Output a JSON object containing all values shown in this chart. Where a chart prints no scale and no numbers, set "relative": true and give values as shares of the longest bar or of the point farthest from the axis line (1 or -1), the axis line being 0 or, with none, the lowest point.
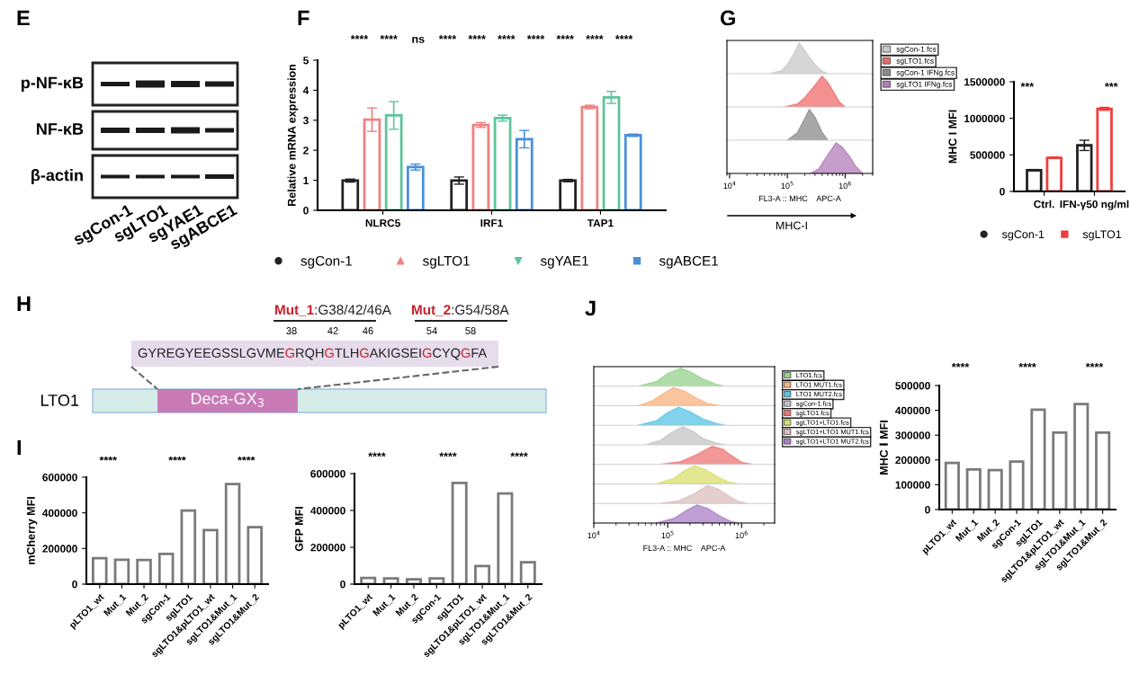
{
  "chart_data": [
    {
      "type": "other",
      "title": "E",
      "annotations": [
        "p-NF-κB",
        "NF-κB",
        "β-actin",
        "sgCon-1",
        "sgLTO1",
        "sgYAE1",
        "sgABCE1"
      ]
    },
    {
      "type": "bar",
      "title": "F",
      "ylabel": "Relative mRNA expression",
      "categories": [
        "NLRC5",
        "IRF1",
        "TAP1"
      ],
      "series": [
        {
          "name": "sgCon-1",
          "color": "#222222",
          "marker": "circle",
          "values": [
            0.99,
            0.99,
            0.99
          ],
          "errors": [
            0.05,
            0.12,
            0.04
          ]
        },
        {
          "name": "sgLTO1",
          "color": "#f08080",
          "marker": "triangle",
          "values": [
            3.02,
            2.84,
            3.44
          ],
          "errors": [
            0.39,
            0.08,
            0.06
          ]
        },
        {
          "name": "sgYAE1",
          "color": "#5cc49a",
          "marker": "triangle-down",
          "values": [
            3.16,
            3.07,
            3.76
          ],
          "errors": [
            0.46,
            0.1,
            0.2
          ]
        },
        {
          "name": "sgABCE1",
          "color": "#4a90d9",
          "marker": "square",
          "values": [
            1.44,
            2.37,
            2.5
          ],
          "errors": [
            0.1,
            0.29,
            0.04
          ]
        }
      ],
      "ylim": [
        0,
        5
      ],
      "yticks": [
        0,
        1,
        2,
        3,
        4,
        5
      ],
      "legend": "bottom",
      "annotations": [
        "****",
        "****",
        "ns",
        "****",
        "****",
        "****",
        "****",
        "****",
        "****",
        "****"
      ]
    },
    {
      "type": "area",
      "title": "G",
      "relative": true,
      "log": "x",
      "tick_labels": false,
      "legend": "right",
      "xlim": [
        9000,
        3000000
      ],
      "series": [
        {
          "name": "sgCon-1.fcs",
          "color": "#c8c8c8",
          "x": [
            50000,
            80000,
            100000,
            130000,
            160000,
            200000,
            250000,
            300000,
            400000,
            500000
          ],
          "values": [
            0,
            0.1,
            0.3,
            0.65,
            1.0,
            0.75,
            0.5,
            0.3,
            0.08,
            0
          ]
        }
      ]
    },
    {
      "type": "area",
      "relative": true,
      "log": "x",
      "tick_labels": false,
      "legend": "right",
      "xlim": [
        9000,
        3000000
      ],
      "series": [
        {
          "name": "sgLTO1.fcs",
          "color": "#ef6b6b",
          "x": [
            90000,
            150000,
            200000,
            300000,
            400000,
            500000,
            600000,
            800000,
            1000000
          ],
          "values": [
            0,
            0.1,
            0.3,
            0.7,
            1,
            0.8,
            0.55,
            0.15,
            0
          ]
        }
      ]
    },
    {
      "type": "area",
      "relative": true,
      "log": "x",
      "tick_labels": false,
      "legend": "right",
      "xlim": [
        9000,
        3000000
      ],
      "series": [
        {
          "name": "sgCon-1 IFNg.fcs",
          "color": "#8a8a8a",
          "x": [
            100000,
            150000,
            200000,
            240000,
            300000,
            400000,
            500000
          ],
          "values": [
            0,
            0.25,
            0.7,
            1,
            0.75,
            0.25,
            0
          ]
        }
      ]
    },
    {
      "type": "area",
      "relative": true,
      "log": "x",
      "tick_labels": "x",
      "legend": "right",
      "xlim": [
        9000,
        3000000
      ],
      "xlabel": "FL3-A :: MHC    APC-A",
      "xticks": [
        {
          "value": 10000,
          "label": "10$^{4}$"
        },
        {
          "value": 100000,
          "label": "10$^{5}$"
        },
        {
          "value": 1000000,
          "label": "10$^{6}$"
        }
      ],
      "series": [
        {
          "name": "sgLTO1 IFNg.fcs",
          "color": "#b27cb8",
          "x": [
            250000,
            350000,
            500000,
            700000,
            900000,
            1200000,
            1500000,
            2000000
          ],
          "values": [
            0,
            0.15,
            0.6,
            1,
            0.85,
            0.55,
            0.25,
            0
          ]
        }
      ],
      "annotations": [
        "MHC-I"
      ]
    },
    {
      "type": "bar",
      "ylabel": "MHC I MFI",
      "categories": [
        "Ctrl.",
        "IFN-γ50 ng/ml"
      ],
      "series": [
        {
          "name": "sgCon-1",
          "color": "#222222",
          "marker": "circle",
          "values": [
            290000,
            630000
          ],
          "errors": [
            10000,
            70000
          ]
        },
        {
          "name": "sgLTO1",
          "color": "#f03c3c",
          "marker": "square",
          "values": [
            460000,
            1130000
          ],
          "errors": [
            10000,
            20000
          ]
        }
      ],
      "ylim": [
        0,
        1500000
      ],
      "yticks": [
        0,
        500000,
        1000000,
        1500000
      ],
      "legend": "bottom",
      "annotations": [
        "***",
        "***"
      ]
    },
    {
      "type": "other",
      "title": "H",
      "annotations": [
        "Mut_1",
        ":G38/42/46A",
        "Mut_2",
        ":G54/58A",
        "38",
        "42",
        "46",
        "54",
        "58",
        "GYREGYEEGSSLGVME",
        "G",
        "RQH",
        "G",
        "TLH",
        "G",
        "AKIGSEI",
        "G",
        "CYQ",
        "G",
        "FA",
        "LTO1",
        "Deca-GX$_{3}$"
      ]
    },
    {
      "type": "bar",
      "title": "I",
      "ylabel": "mCherry MFI",
      "categories": [
        "pLTO1_wt",
        "Mut_1",
        "Mut_2",
        "sgCon-1",
        "sgLTO1",
        "sgLTO1&pLTO1_wt",
        "sgLTO1&Mut_1",
        "sgLTO1&Mut_2"
      ],
      "color": "#7a7a7a",
      "values": [
        146000,
        137000,
        135000,
        169000,
        413000,
        303000,
        561000,
        320000
      ],
      "ylim": [
        0,
        600000
      ],
      "yticks": [
        0,
        200000,
        400000,
        600000
      ],
      "annotations": [
        "****",
        "****",
        "****"
      ]
    },
    {
      "type": "bar",
      "ylabel": "GFP MFI",
      "categories": [
        "pLTO1_wt",
        "Mut_1",
        "Mut_2",
        "sgCon-1",
        "sgLTO1",
        "sgLTO1&pLTO1_wt",
        "sgLTO1&Mut_1",
        "sgLTO1&Mut_2"
      ],
      "color": "#7a7a7a",
      "values": [
        33000,
        31000,
        26000,
        31000,
        549000,
        98000,
        492000,
        119000
      ],
      "ylim": [
        0,
        600000
      ],
      "yticks": [
        0,
        200000,
        400000,
        600000
      ],
      "annotations": [
        "****",
        "****",
        "****"
      ]
    },
    {
      "type": "area",
      "title": "J",
      "relative": true,
      "log": "x",
      "tick_labels": false,
      "legend": "right",
      "xlim": [
        10000,
        2800000
      ],
      "series": [
        {
          "name": "LTO1.fcs",
          "color": "#93d18b",
          "x": [
            40000,
            70000,
            100000,
            150000,
            200000,
            300000,
            450000,
            600000
          ],
          "values": [
            0,
            0.25,
            0.7,
            1.0,
            0.8,
            0.4,
            0.1,
            0
          ]
        }
      ]
    },
    {
      "type": "area",
      "relative": true,
      "log": "x",
      "tick_labels": false,
      "legend": "right",
      "xlim": [
        10000,
        2800000
      ],
      "series": [
        {
          "name": "LTO1 MUT1.fcs",
          "color": "#f7b27e",
          "x": [
            40000,
            60000,
            90000,
            120000,
            170000,
            250000,
            350000,
            500000
          ],
          "values": [
            0,
            0.25,
            0.7,
            1,
            0.8,
            0.4,
            0.12,
            0
          ]
        }
      ]
    },
    {
      "type": "area",
      "relative": true,
      "log": "x",
      "tick_labels": false,
      "legend": "right",
      "xlim": [
        10000,
        2800000
      ],
      "series": [
        {
          "name": "LTO1 MUT2.fcs",
          "color": "#58c4e3",
          "x": [
            40000,
            70000,
            100000,
            140000,
            200000,
            300000,
            450000,
            600000
          ],
          "values": [
            0,
            0.25,
            0.7,
            1,
            0.75,
            0.35,
            0.1,
            0
          ]
        }
      ]
    },
    {
      "type": "area",
      "relative": true,
      "log": "x",
      "tick_labels": false,
      "legend": "right",
      "xlim": [
        10000,
        2800000
      ],
      "series": [
        {
          "name": "sgCon-1.fcs",
          "color": "#c4c4c4",
          "x": [
            50000,
            80000,
            110000,
            160000,
            220000,
            300000,
            450000,
            600000
          ],
          "values": [
            0,
            0.25,
            0.65,
            1,
            0.75,
            0.35,
            0.1,
            0
          ]
        }
      ]
    },
    {
      "type": "area",
      "relative": true,
      "log": "x",
      "tick_labels": false,
      "legend": "right",
      "xlim": [
        10000,
        2800000
      ],
      "series": [
        {
          "name": "sgLTO1.fcs",
          "color": "#ef7575",
          "x": [
            80000,
            150000,
            250000,
            400000,
            550000,
            750000,
            1000000,
            1400000
          ],
          "values": [
            0,
            0.15,
            0.55,
            1,
            0.85,
            0.45,
            0.12,
            0
          ]
        }
      ]
    },
    {
      "type": "area",
      "relative": true,
      "log": "x",
      "tick_labels": false,
      "legend": "right",
      "xlim": [
        10000,
        2800000
      ],
      "series": [
        {
          "name": "sgLTO1+LTO1.fcs",
          "color": "#d8df6c",
          "x": [
            70000,
            120000,
            170000,
            230000,
            320000,
            450000,
            650000,
            900000
          ],
          "values": [
            0,
            0.3,
            0.75,
            1,
            0.8,
            0.45,
            0.12,
            0
          ]
        }
      ]
    },
    {
      "type": "area",
      "relative": true,
      "log": "x",
      "tick_labels": false,
      "legend": "right",
      "xlim": [
        10000,
        2800000
      ],
      "series": [
        {
          "name": "sgLTO1+LTO1 MUT1.fcs",
          "color": "#dbbfbe",
          "x": [
            80000,
            140000,
            220000,
            350000,
            480000,
            650000,
            900000,
            1200000
          ],
          "values": [
            0,
            0.15,
            0.5,
            1,
            0.8,
            0.45,
            0.12,
            0
          ]
        }
      ]
    },
    {
      "type": "area",
      "relative": true,
      "log": "x",
      "tick_labels": "x",
      "legend": "right",
      "xlim": [
        10000,
        2800000
      ],
      "xlabel": "FL3-A :: MHC    APC-A",
      "xticks": [
        {
          "value": 10000,
          "label": "10$^{4}$"
        },
        {
          "value": 100000,
          "label": "10$^{5}$"
        },
        {
          "value": 1000000,
          "label": "10$^{6}$"
        }
      ],
      "series": [
        {
          "name": "sgLTO1+LTO1 MUT2.fcs",
          "color": "#a97fc4",
          "x": [
            70000,
            120000,
            180000,
            250000,
            350000,
            500000,
            700000,
            900000
          ],
          "values": [
            0,
            0.25,
            0.7,
            1,
            0.8,
            0.4,
            0.1,
            0
          ]
        }
      ]
    },
    {
      "type": "bar",
      "ylabel": "MHC Ⅰ MFI",
      "categories": [
        "pLTO1_wt",
        "Mut_1",
        "Mut_2",
        "sgCon-1",
        "sgLTO1",
        "sgLTO1&pLTO1_wt",
        "sgLTO1&Mut_1",
        "sgLTO1&Mut_2"
      ],
      "color": "#7a7a7a",
      "values": [
        188000,
        162000,
        159000,
        193000,
        403000,
        310000,
        425000,
        310000
      ],
      "ylim": [
        0,
        500000
      ],
      "yticks": [
        0,
        100000,
        200000,
        300000,
        400000,
        500000
      ],
      "annotations": [
        "****",
        "****",
        "****"
      ]
    }
  ]
}
